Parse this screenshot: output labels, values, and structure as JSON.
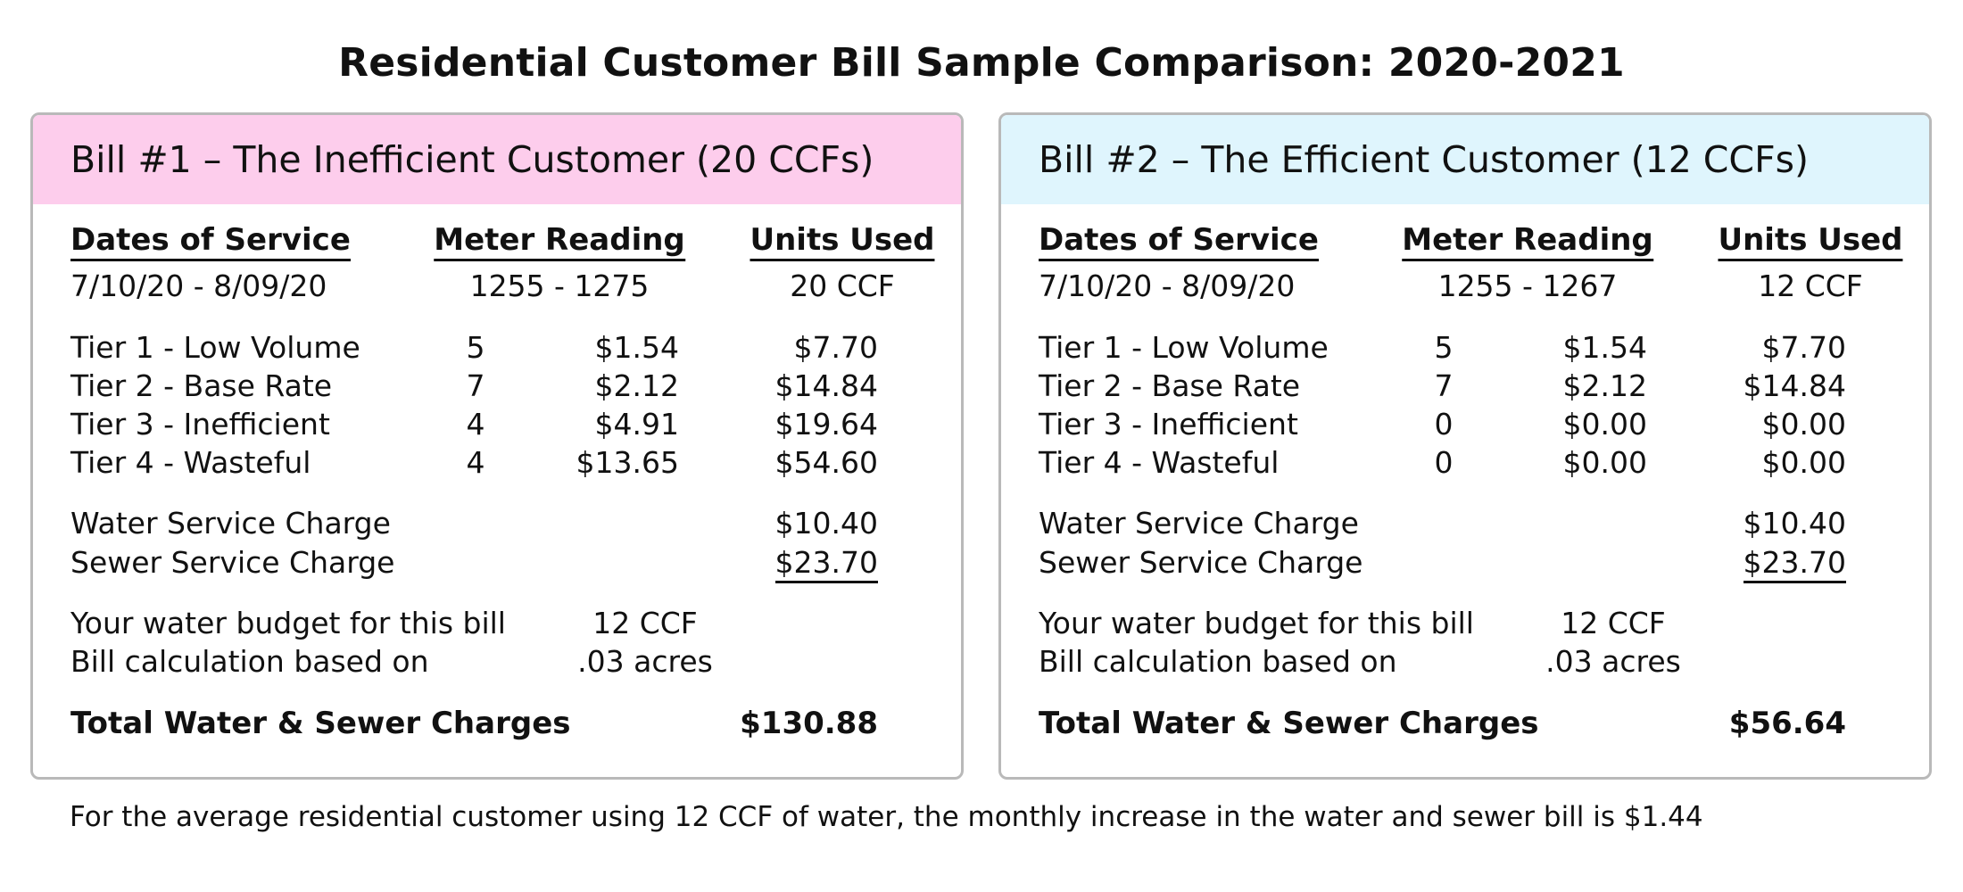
{
  "title": "Residential Customer Bill Sample Comparison: 2020-2021",
  "columns": {
    "dates": "Dates of Service",
    "meter": "Meter Reading",
    "units": "Units Used"
  },
  "bills": [
    {
      "header": "Bill #1 – The Inefficient Customer (20 CCFs)",
      "header_color": "#fdcdec",
      "dates": "7/10/20 - 8/09/20",
      "meter": "1255 - 1275",
      "units": "20 CCF",
      "tiers": [
        {
          "label": "Tier 1 - Low Volume",
          "qty": "5",
          "rate": "$1.54",
          "amount": "$7.70"
        },
        {
          "label": "Tier 2 - Base Rate",
          "qty": "7",
          "rate": "$2.12",
          "amount": "$14.84"
        },
        {
          "label": "Tier 3 - Inefficient",
          "qty": "4",
          "rate": "$4.91",
          "amount": "$19.64"
        },
        {
          "label": "Tier 4 - Wasteful",
          "qty": "4",
          "rate": "$13.65",
          "amount": "$54.60"
        }
      ],
      "water_service_label": "Water Service Charge",
      "water_service_amount": "$10.40",
      "sewer_service_label": "Sewer Service Charge",
      "sewer_service_amount": "$23.70",
      "budget_label": "Your water budget for this bill",
      "budget_value": "12 CCF",
      "calc_label": "Bill calculation based on",
      "calc_value": ".03 acres",
      "total_label": "Total Water & Sewer Charges",
      "total_value": "$130.88"
    },
    {
      "header": "Bill #2 – The Efficient Customer (12 CCFs)",
      "header_color": "#dff5fd",
      "dates": "7/10/20 - 8/09/20",
      "meter": "1255 - 1267",
      "units": "12 CCF",
      "tiers": [
        {
          "label": "Tier 1 - Low Volume",
          "qty": "5",
          "rate": "$1.54",
          "amount": "$7.70"
        },
        {
          "label": "Tier 2 - Base Rate",
          "qty": "7",
          "rate": "$2.12",
          "amount": "$14.84"
        },
        {
          "label": "Tier 3 - Inefficient",
          "qty": "0",
          "rate": "$0.00",
          "amount": "$0.00"
        },
        {
          "label": "Tier 4 - Wasteful",
          "qty": "0",
          "rate": "$0.00",
          "amount": "$0.00"
        }
      ],
      "water_service_label": "Water Service Charge",
      "water_service_amount": "$10.40",
      "sewer_service_label": "Sewer Service Charge",
      "sewer_service_amount": "$23.70",
      "budget_label": "Your water budget for this bill",
      "budget_value": "12 CCF",
      "calc_label": "Bill calculation based on",
      "calc_value": ".03 acres",
      "total_label": "Total Water & Sewer Charges",
      "total_value": "$56.64"
    }
  ],
  "footnote": "For the average residential customer using 12 CCF of water, the monthly increase in the water and sewer bill is $1.44"
}
